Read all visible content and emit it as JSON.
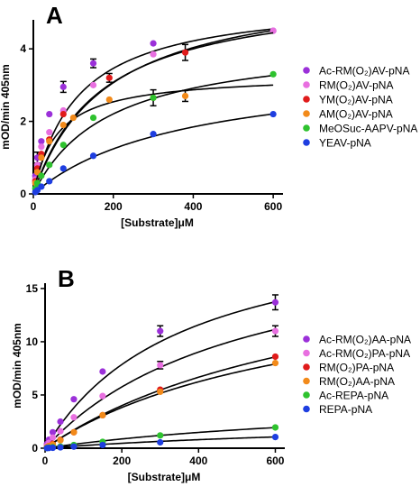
{
  "chart_data": [
    {
      "type": "scatter",
      "panel_label": "A",
      "xlabel": "[Substrate]μM",
      "ylabel": "mOD/min 405nm",
      "xlim": [
        0,
        620
      ],
      "ylim": [
        0,
        4.8
      ],
      "xticks": [
        0,
        200,
        400,
        600
      ],
      "yticks": [
        0,
        2,
        4
      ],
      "grid": false,
      "legend_position": "right",
      "fit": "michaelis-menten",
      "series": [
        {
          "name": "Ac-RM(O₂)AV-pNA",
          "color": "#9b30d9",
          "x": [
            5,
            10,
            20,
            40,
            75,
            150,
            300,
            600
          ],
          "y": [
            0.5,
            1.0,
            1.45,
            2.2,
            2.95,
            3.6,
            4.15,
            4.5
          ],
          "err": [
            0,
            0.15,
            0,
            0,
            0.15,
            0.12,
            0,
            0
          ],
          "vmax": 5.4,
          "km": 112
        },
        {
          "name": "RM(O₂)AV-pNA",
          "color": "#e86fe0",
          "x": [
            5,
            10,
            20,
            40,
            75,
            150,
            300,
            600
          ],
          "y": [
            0.4,
            0.8,
            1.3,
            1.7,
            2.3,
            3.0,
            3.85,
            4.5
          ],
          "err": [
            0,
            0,
            0,
            0,
            0,
            0,
            0,
            0
          ],
          "vmax": 5.9,
          "km": 185
        },
        {
          "name": "YM(O₂)AV-pNA",
          "color": "#e01b1b",
          "x": [
            5,
            10,
            20,
            40,
            75,
            190,
            380
          ],
          "y": [
            0.35,
            0.7,
            1.1,
            1.5,
            2.2,
            3.2,
            3.9
          ],
          "err": [
            0,
            0,
            0,
            0,
            0,
            0.12,
            0.22
          ],
          "vmax": 5.7,
          "km": 170
        },
        {
          "name": "AM(O₂)AV-pNA",
          "color": "#f28a1a",
          "x": [
            5,
            10,
            20,
            40,
            75,
            100,
            190,
            300,
            380
          ],
          "y": [
            0.3,
            0.6,
            1.0,
            1.45,
            1.9,
            2.1,
            2.6,
            2.65,
            2.7
          ],
          "err": [
            0,
            0,
            0,
            0,
            0,
            0,
            0,
            0,
            0.15
          ],
          "vmax": 3.3,
          "km": 60
        },
        {
          "name": "MeOSuc-AAPV-pNA",
          "color": "#2ec22e",
          "x": [
            5,
            10,
            20,
            40,
            75,
            150,
            300,
            600
          ],
          "y": [
            0.15,
            0.3,
            0.5,
            0.8,
            1.35,
            2.1,
            2.65,
            3.3
          ],
          "err": [
            0,
            0,
            0,
            0,
            0,
            0,
            0.22,
            0
          ],
          "vmax": 4.3,
          "km": 190
        },
        {
          "name": "YEAV-pNA",
          "color": "#1e3ee0",
          "x": [
            5,
            10,
            20,
            40,
            75,
            150,
            300,
            600
          ],
          "y": [
            0.05,
            0.1,
            0.2,
            0.35,
            0.7,
            1.05,
            1.65,
            2.2
          ],
          "err": [
            0,
            0,
            0,
            0,
            0,
            0,
            0,
            0
          ],
          "vmax": 3.6,
          "km": 380
        }
      ]
    },
    {
      "type": "scatter",
      "panel_label": "B",
      "xlabel": "[Substrate]μM",
      "ylabel": "mOD/min 405nm",
      "xlim": [
        0,
        620
      ],
      "ylim": [
        0,
        15.5
      ],
      "xticks": [
        0,
        200,
        400,
        600
      ],
      "yticks": [
        0,
        5,
        10,
        15
      ],
      "grid": false,
      "legend_position": "right",
      "fit": "michaelis-menten",
      "series": [
        {
          "name": "Ac-RM(O₂)AA-pNA",
          "color": "#9b30d9",
          "x": [
            5,
            10,
            20,
            40,
            75,
            150,
            300,
            600
          ],
          "y": [
            0.4,
            0.8,
            1.5,
            2.5,
            4.6,
            7.2,
            11.0,
            13.7
          ],
          "err": [
            0,
            0,
            0,
            0,
            0,
            0,
            0.5,
            0.7
          ],
          "vmax": 22.0,
          "km": 360
        },
        {
          "name": "Ac-RM(O₂)PA-pNA",
          "color": "#e86fe0",
          "x": [
            5,
            10,
            20,
            40,
            75,
            150,
            300,
            600
          ],
          "y": [
            0.25,
            0.5,
            1.0,
            1.6,
            2.9,
            4.9,
            7.8,
            11.0
          ],
          "err": [
            0,
            0,
            0,
            0,
            0,
            0,
            0.35,
            0.5
          ],
          "vmax": 21.0,
          "km": 530
        },
        {
          "name": "RM(O₂)PA-pNA",
          "color": "#e01b1b",
          "x": [
            5,
            10,
            20,
            40,
            75,
            150,
            300,
            600
          ],
          "y": [
            0.1,
            0.2,
            0.4,
            0.8,
            1.5,
            3.1,
            5.5,
            8.6
          ],
          "err": [
            0,
            0,
            0,
            0,
            0,
            0,
            0,
            0
          ],
          "vmax": 20.0,
          "km": 800
        },
        {
          "name": "RM(O₂)AA-pNA",
          "color": "#f28a1a",
          "x": [
            5,
            10,
            20,
            40,
            75,
            150,
            300,
            600
          ],
          "y": [
            0.1,
            0.2,
            0.35,
            0.75,
            1.5,
            3.1,
            5.3,
            8.0
          ],
          "err": [
            0,
            0,
            0,
            0,
            0,
            0,
            0,
            0
          ],
          "vmax": 17.0,
          "km": 690
        },
        {
          "name": "Ac-REPA-pNA",
          "color": "#2ec22e",
          "x": [
            5,
            10,
            20,
            40,
            75,
            150,
            300,
            600
          ],
          "y": [
            0.02,
            0.05,
            0.1,
            0.15,
            0.3,
            0.6,
            1.2,
            1.95
          ],
          "err": [
            0,
            0,
            0,
            0,
            0,
            0,
            0,
            0
          ],
          "vmax": 5.0,
          "km": 950
        },
        {
          "name": "REPA-pNA",
          "color": "#1e3ee0",
          "x": [
            5,
            10,
            20,
            40,
            75,
            150,
            300,
            600
          ],
          "y": [
            0.01,
            0.02,
            0.04,
            0.08,
            0.15,
            0.3,
            0.55,
            1.05
          ],
          "err": [
            0,
            0,
            0,
            0,
            0,
            0,
            0,
            0
          ],
          "vmax": 3.0,
          "km": 1100
        }
      ]
    }
  ]
}
